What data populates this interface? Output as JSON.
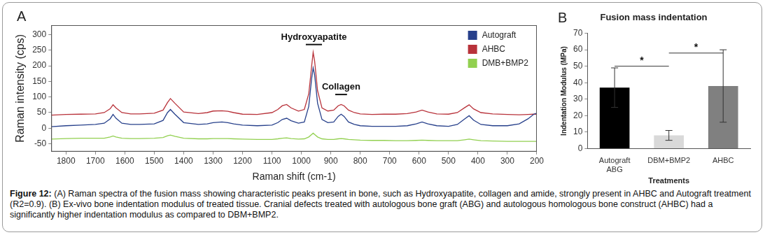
{
  "chart_data": [
    {
      "type": "line",
      "panel": "A",
      "x_label": "Raman shift (cm-1)",
      "y_label": "Raman intensity (cps)",
      "x": [
        1850,
        1800,
        1750,
        1700,
        1670,
        1650,
        1640,
        1630,
        1610,
        1580,
        1550,
        1500,
        1470,
        1455,
        1445,
        1430,
        1400,
        1350,
        1320,
        1300,
        1270,
        1250,
        1230,
        1200,
        1150,
        1100,
        1080,
        1065,
        1050,
        1035,
        1010,
        990,
        975,
        965,
        960,
        955,
        945,
        930,
        910,
        890,
        875,
        865,
        855,
        840,
        820,
        800,
        760,
        720,
        680,
        640,
        610,
        590,
        570,
        540,
        500,
        470,
        445,
        430,
        415,
        390,
        350,
        300,
        260,
        230,
        210,
        200
      ],
      "xlim": [
        1850,
        200
      ],
      "xticks": [
        1800,
        1700,
        1600,
        1500,
        1400,
        1300,
        1200,
        1100,
        1000,
        900,
        800,
        700,
        600,
        500,
        400,
        300,
        200
      ],
      "ylim": [
        -75,
        330
      ],
      "yticks": [
        -50,
        0,
        50,
        100,
        150,
        200,
        250,
        300
      ],
      "grid": false,
      "legend": "upper right",
      "series": [
        {
          "name": "Autograft",
          "color": "#27408b",
          "values": [
            5,
            8,
            10,
            12,
            16,
            30,
            44,
            32,
            16,
            12,
            12,
            14,
            25,
            50,
            60,
            45,
            18,
            12,
            14,
            18,
            20,
            18,
            14,
            10,
            8,
            10,
            18,
            28,
            32,
            24,
            16,
            20,
            70,
            160,
            193,
            170,
            80,
            28,
            18,
            20,
            38,
            45,
            38,
            20,
            12,
            8,
            6,
            6,
            6,
            8,
            14,
            20,
            14,
            8,
            6,
            12,
            30,
            40,
            26,
            12,
            8,
            8,
            14,
            30,
            45,
            48
          ]
        },
        {
          "name": "AHBC",
          "color": "#b8323a",
          "values": [
            42,
            44,
            45,
            46,
            50,
            62,
            75,
            65,
            50,
            46,
            46,
            48,
            58,
            82,
            95,
            80,
            52,
            47,
            50,
            55,
            56,
            54,
            50,
            45,
            44,
            50,
            60,
            72,
            76,
            65,
            55,
            60,
            110,
            200,
            243,
            215,
            120,
            65,
            55,
            58,
            72,
            76,
            72,
            58,
            50,
            46,
            44,
            45,
            45,
            47,
            52,
            58,
            52,
            46,
            45,
            50,
            66,
            75,
            62,
            50,
            46,
            44,
            43,
            44,
            45,
            45
          ]
        },
        {
          "name": "DMB+BMP2",
          "color": "#92d050",
          "values": [
            -35,
            -33,
            -32,
            -32,
            -32,
            -28,
            -25,
            -28,
            -32,
            -33,
            -33,
            -32,
            -30,
            -24,
            -22,
            -26,
            -32,
            -34,
            -34,
            -33,
            -33,
            -33,
            -34,
            -35,
            -36,
            -36,
            -34,
            -32,
            -31,
            -33,
            -35,
            -34,
            -28,
            -20,
            -16,
            -20,
            -28,
            -34,
            -36,
            -36,
            -34,
            -33,
            -34,
            -36,
            -37,
            -38,
            -39,
            -39,
            -40,
            -40,
            -39,
            -38,
            -39,
            -40,
            -40,
            -40,
            -37,
            -35,
            -37,
            -40,
            -41,
            -42,
            -42,
            -42,
            -42,
            -42
          ]
        }
      ],
      "annotations": [
        {
          "text": "Hydroxyapatite",
          "x": [
            985,
            930
          ],
          "y": 268
        },
        {
          "text": "Collagen",
          "x": [
            885,
            845
          ],
          "y": 108
        }
      ]
    },
    {
      "type": "bar",
      "panel": "B",
      "title": "Fusion mass indentation",
      "x_label": "Treatments",
      "y_label": "Indentation Modulus (MPa)",
      "categories": [
        "Autograft ABG",
        "DBM+BMP2",
        "AHBC"
      ],
      "values": [
        37,
        8,
        38
      ],
      "errors": [
        12,
        3,
        22
      ],
      "colors": [
        "#000000",
        "#d9d9d9",
        "#808080"
      ],
      "ylim": [
        0,
        70
      ],
      "yticks": [
        0,
        10,
        20,
        30,
        40,
        50,
        60,
        70
      ],
      "grid": false,
      "annotations": [
        {
          "text": "*",
          "from": "Autograft ABG",
          "to": "DBM+BMP2",
          "y": 50
        },
        {
          "text": "*",
          "from": "DBM+BMP2",
          "to": "AHBC",
          "y": 58
        }
      ]
    }
  ],
  "caption": {
    "label": "Figure 12:",
    "text": "(A) Raman spectra of the fusion mass showing characteristic peaks present in bone, such as Hydroxyapatite, collagen and amide, strongly present in AHBC and Autograft treatment (R2=0.9). (B) Ex-vivo bone indentation modulus of treated tissue. Cranial defects treated with autologous bone graft (ABG) and autologous homologous bone construct (AHBC) had a significantly higher indentation modulus as compared to DBM+BMP2."
  }
}
